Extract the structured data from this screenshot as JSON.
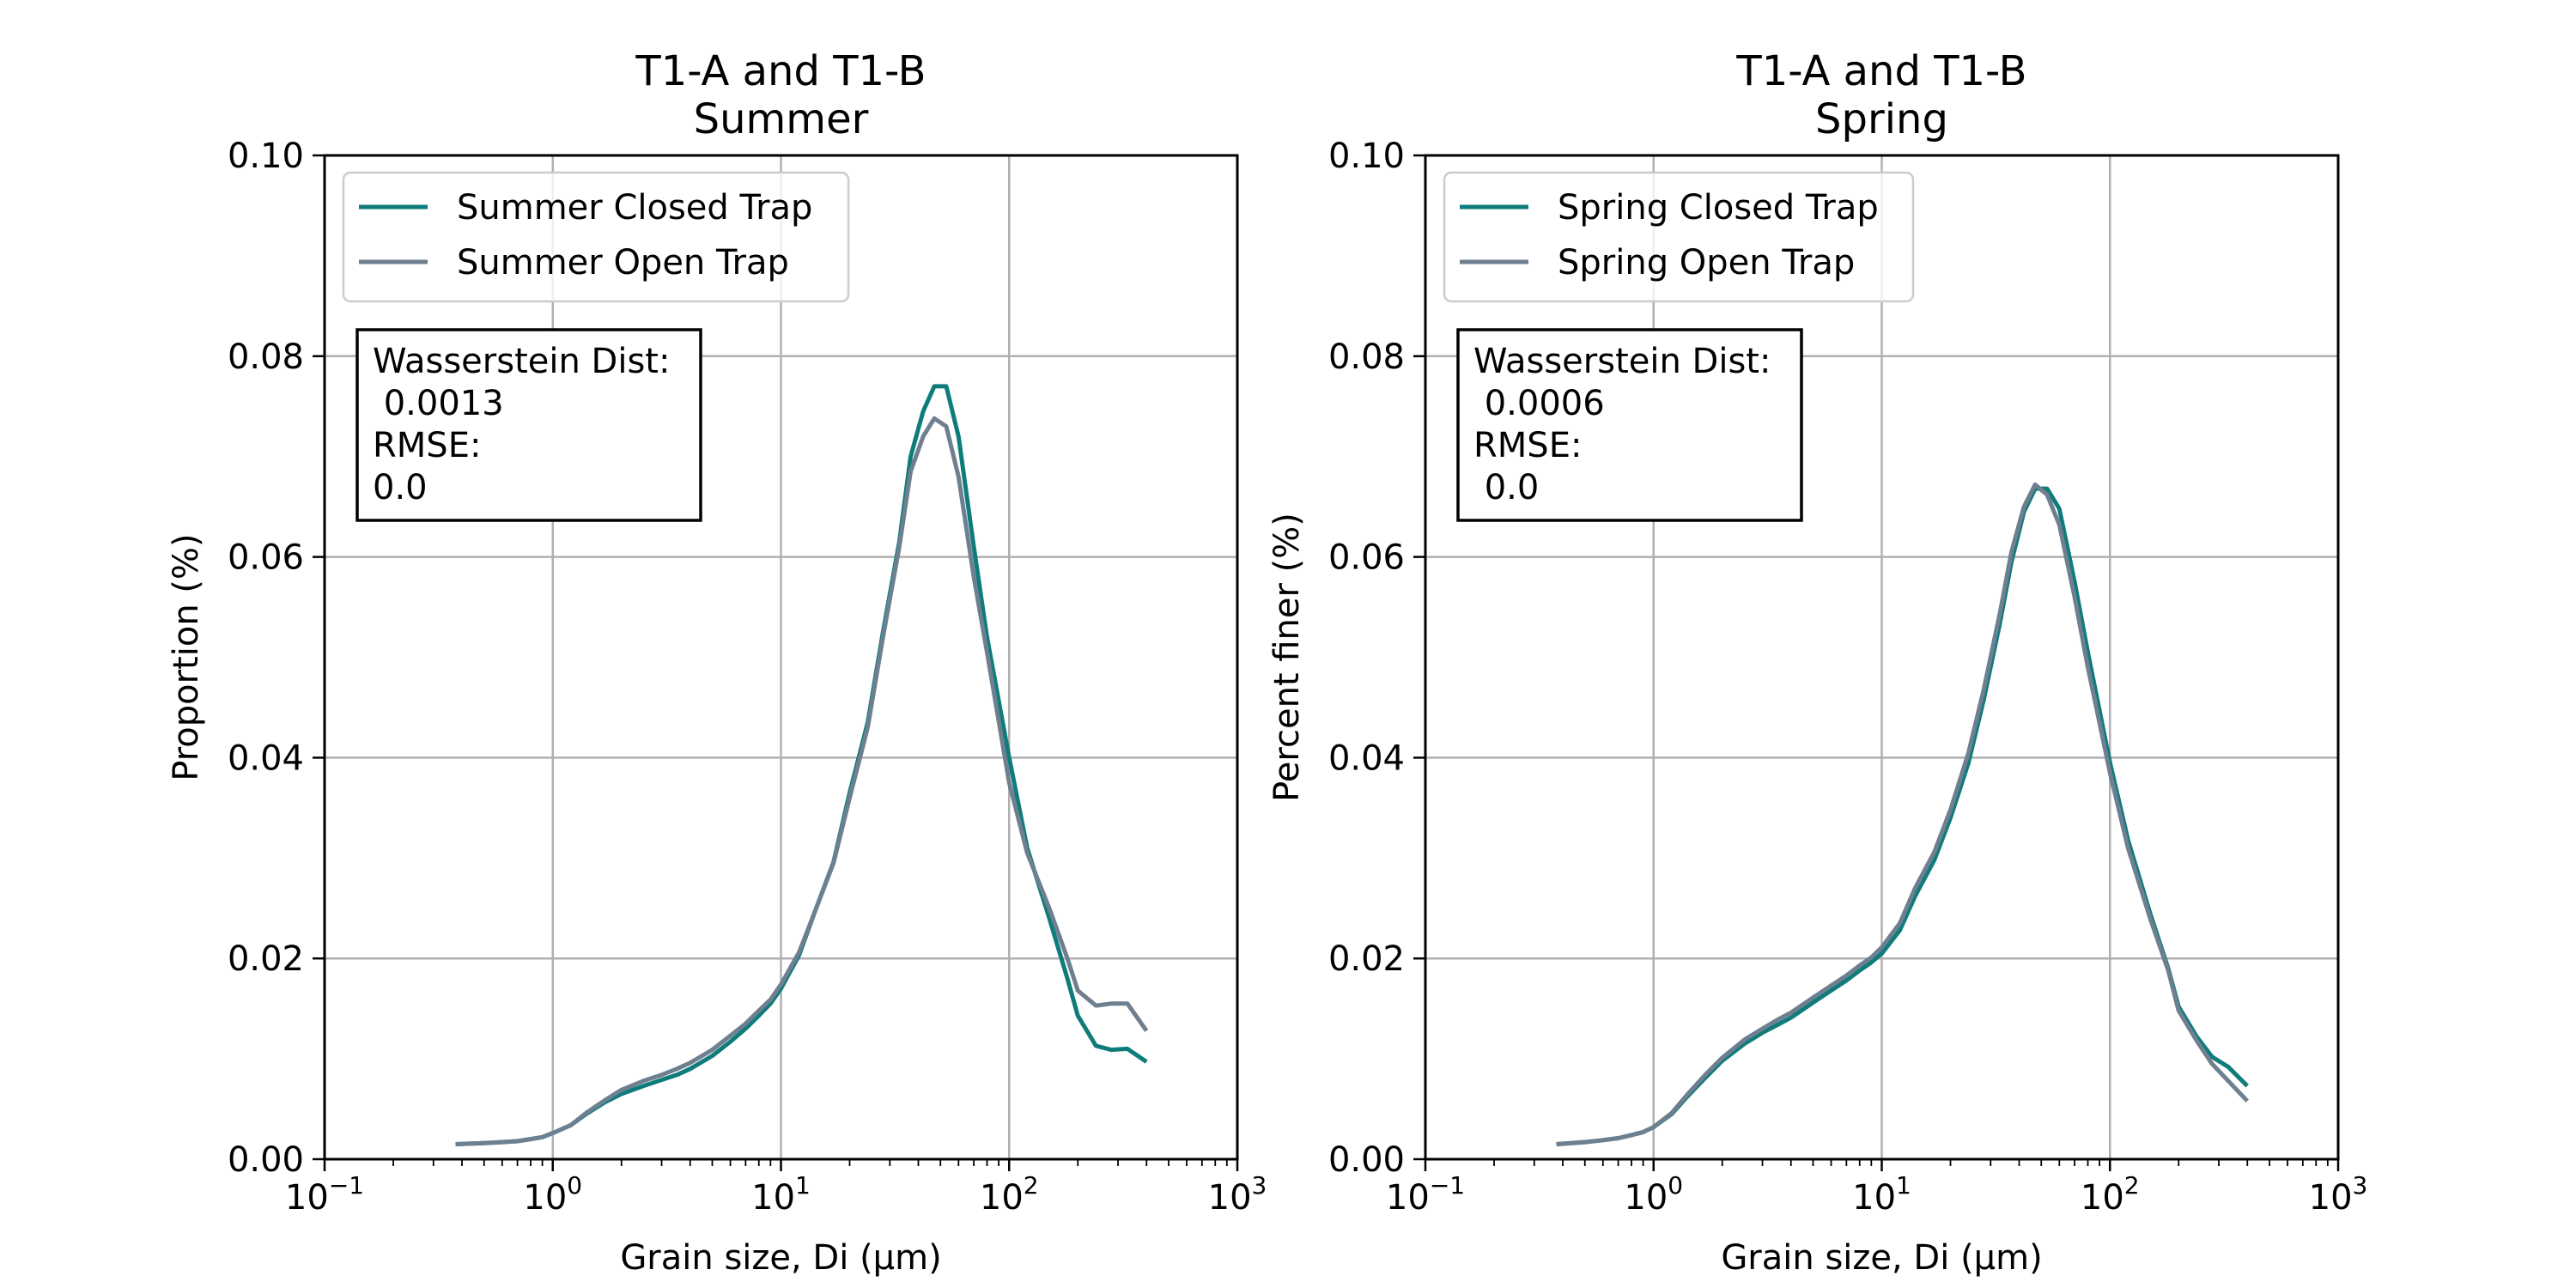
{
  "chart_data": [
    {
      "type": "line",
      "title": "T1-A and T1-B\nSummer",
      "xlabel": "Grain size, Di (μm)",
      "ylabel": "Proportion (%)",
      "xscale": "log",
      "xlim": [
        0.1,
        1000
      ],
      "ylim": [
        0,
        0.1
      ],
      "yticks": [
        "0.00",
        "0.02",
        "0.04",
        "0.06",
        "0.08",
        "0.10"
      ],
      "xtick_powers": [
        -1,
        0,
        1,
        2,
        3
      ],
      "grid": true,
      "legend": "upper-left",
      "annotation": [
        "Wasserstein Dist:",
        " 0.0013",
        "RMSE:",
        "0.0"
      ],
      "x": [
        0.375,
        0.412,
        0.452,
        0.496,
        0.545,
        0.598,
        0.657,
        0.721,
        0.791,
        0.869,
        0.954,
        1.047,
        1.15,
        1.26,
        1.38,
        1.52,
        1.67,
        1.83,
        2.01,
        2.21,
        2.42,
        2.66,
        2.92,
        3.2,
        3.52,
        3.86,
        4.24,
        4.66,
        5.11,
        5.61,
        6.16,
        6.76,
        7.42,
        8.15,
        8.94,
        9.82,
        10.78,
        11.84,
        13.0,
        14.26,
        15.66,
        17.19,
        18.88,
        20.72,
        22.75,
        24.98,
        27.42,
        30.1,
        33.05,
        36.28,
        39.83,
        43.72,
        48.0,
        52.7,
        57.85,
        63.5,
        69.7,
        76.5,
        84.0,
        92.2,
        101.2,
        111.1,
        122.0,
        133.9,
        147.0,
        161.4,
        177.2,
        194.5,
        213.5,
        234.4,
        257.3,
        282.5,
        310.1,
        340.4,
        373.7,
        410.3
      ],
      "series": [
        {
          "name": "Summer Closed Trap",
          "color": "#0e7c7b",
          "x": [
            0.375,
            0.5,
            0.6,
            0.7,
            0.8,
            0.9,
            1.0,
            1.2,
            1.4,
            1.7,
            2.0,
            2.5,
            3.0,
            3.5,
            4.0,
            5.0,
            6.0,
            7.0,
            8.0,
            9.0,
            10.0,
            12.0,
            14.0,
            17.0,
            20.0,
            24.0,
            28.0,
            33.0,
            37.0,
            42.0,
            47.0,
            53.0,
            60.0,
            70.0,
            80.0,
            100.0,
            120.0,
            150.0,
            180.0,
            200.0,
            240.0,
            280.0,
            330.0,
            400.0
          ],
          "values": [
            0.0015,
            0.0016,
            0.0017,
            0.0018,
            0.002,
            0.0022,
            0.0026,
            0.0034,
            0.0045,
            0.0057,
            0.0065,
            0.0073,
            0.0079,
            0.0084,
            0.009,
            0.0103,
            0.0117,
            0.013,
            0.0143,
            0.0155,
            0.017,
            0.0203,
            0.0245,
            0.0296,
            0.0365,
            0.0435,
            0.0525,
            0.0615,
            0.07,
            0.0745,
            0.077,
            0.077,
            0.072,
            0.061,
            0.052,
            0.04,
            0.031,
            0.024,
            0.018,
            0.0143,
            0.0113,
            0.0109,
            0.011,
            0.0097
          ]
        },
        {
          "name": "Summer Open Trap",
          "color": "#6e7f90",
          "x": [
            0.375,
            0.5,
            0.6,
            0.7,
            0.8,
            0.9,
            1.0,
            1.2,
            1.4,
            1.7,
            2.0,
            2.5,
            3.0,
            3.5,
            4.0,
            5.0,
            6.0,
            7.0,
            8.0,
            9.0,
            10.0,
            12.0,
            14.0,
            17.0,
            20.0,
            24.0,
            28.0,
            33.0,
            37.0,
            42.0,
            47.0,
            53.0,
            60.0,
            70.0,
            80.0,
            100.0,
            120.0,
            150.0,
            180.0,
            200.0,
            240.0,
            280.0,
            330.0,
            400.0
          ],
          "values": [
            0.0015,
            0.0016,
            0.0017,
            0.0018,
            0.002,
            0.0022,
            0.0026,
            0.0034,
            0.0046,
            0.0059,
            0.0069,
            0.0078,
            0.0084,
            0.009,
            0.0096,
            0.0109,
            0.0123,
            0.0135,
            0.0148,
            0.0159,
            0.0174,
            0.0206,
            0.0245,
            0.0295,
            0.036,
            0.043,
            0.052,
            0.061,
            0.0685,
            0.072,
            0.0738,
            0.073,
            0.068,
            0.058,
            0.0505,
            0.0375,
            0.0305,
            0.025,
            0.02,
            0.0168,
            0.0153,
            0.0155,
            0.0155,
            0.0128
          ]
        }
      ]
    },
    {
      "type": "line",
      "title": "T1-A and T1-B\nSpring",
      "xlabel": "Grain size, Di (μm)",
      "ylabel": "Percent finer (%)",
      "xscale": "log",
      "xlim": [
        0.1,
        1000
      ],
      "ylim": [
        0,
        0.1
      ],
      "yticks": [
        "0.00",
        "0.02",
        "0.04",
        "0.06",
        "0.08",
        "0.10"
      ],
      "xtick_powers": [
        -1,
        0,
        1,
        2,
        3
      ],
      "grid": true,
      "legend": "upper-left",
      "annotation": [
        "Wasserstein Dist:",
        " 0.0006",
        "RMSE:",
        " 0.0"
      ],
      "series": [
        {
          "name": "Spring Closed Trap",
          "color": "#0e7c7b",
          "x": [
            0.375,
            0.5,
            0.6,
            0.7,
            0.8,
            0.9,
            1.0,
            1.2,
            1.4,
            1.7,
            2.0,
            2.5,
            3.0,
            3.5,
            4.0,
            5.0,
            6.0,
            7.0,
            8.0,
            9.0,
            10.0,
            12.0,
            14.0,
            17.0,
            20.0,
            24.0,
            28.0,
            33.0,
            37.0,
            42.0,
            47.0,
            53.0,
            60.0,
            70.0,
            80.0,
            100.0,
            120.0,
            150.0,
            180.0,
            200.0,
            240.0,
            280.0,
            330.0,
            400.0
          ],
          "values": [
            0.0015,
            0.0017,
            0.0019,
            0.0021,
            0.0024,
            0.0027,
            0.0032,
            0.0045,
            0.0062,
            0.0082,
            0.0098,
            0.0115,
            0.0126,
            0.0134,
            0.0141,
            0.0156,
            0.0168,
            0.0178,
            0.0188,
            0.0196,
            0.0205,
            0.0228,
            0.0262,
            0.0298,
            0.034,
            0.0395,
            0.0458,
            0.0535,
            0.0595,
            0.0645,
            0.0668,
            0.0668,
            0.0648,
            0.0575,
            0.0505,
            0.0395,
            0.0318,
            0.0245,
            0.019,
            0.0152,
            0.0122,
            0.0102,
            0.0092,
            0.0073
          ]
        },
        {
          "name": "Spring Open Trap",
          "color": "#6e7f90",
          "x": [
            0.375,
            0.5,
            0.6,
            0.7,
            0.8,
            0.9,
            1.0,
            1.2,
            1.4,
            1.7,
            2.0,
            2.5,
            3.0,
            3.5,
            4.0,
            5.0,
            6.0,
            7.0,
            8.0,
            9.0,
            10.0,
            12.0,
            14.0,
            17.0,
            20.0,
            24.0,
            28.0,
            33.0,
            37.0,
            42.0,
            47.0,
            53.0,
            60.0,
            70.0,
            80.0,
            100.0,
            120.0,
            150.0,
            180.0,
            200.0,
            240.0,
            280.0,
            330.0,
            400.0
          ],
          "values": [
            0.0015,
            0.0017,
            0.0019,
            0.0021,
            0.0024,
            0.0027,
            0.0032,
            0.0046,
            0.0064,
            0.0085,
            0.0101,
            0.0119,
            0.013,
            0.0139,
            0.0146,
            0.0161,
            0.0173,
            0.0183,
            0.0193,
            0.0201,
            0.0211,
            0.0235,
            0.027,
            0.0306,
            0.0348,
            0.0405,
            0.0468,
            0.0545,
            0.0605,
            0.065,
            0.0672,
            0.0662,
            0.0632,
            0.056,
            0.049,
            0.0385,
            0.031,
            0.024,
            0.0188,
            0.0148,
            0.0118,
            0.0095,
            0.0078,
            0.0058
          ]
        }
      ]
    }
  ]
}
